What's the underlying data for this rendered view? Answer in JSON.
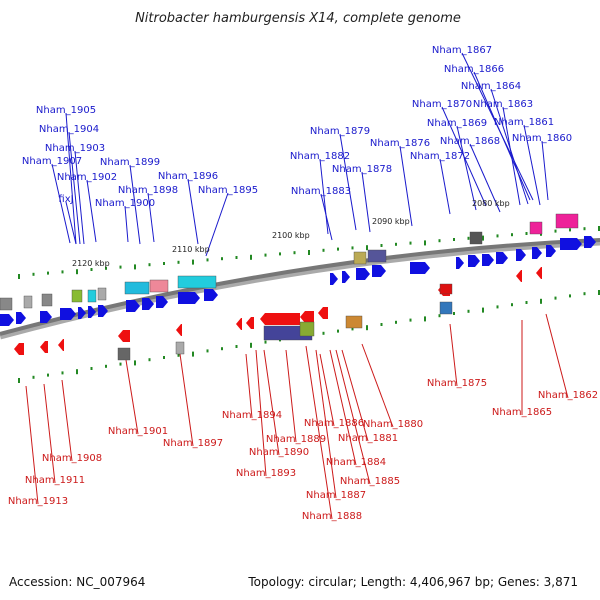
{
  "title": "Nitrobacter hamburgensis X14, complete genome",
  "footer": {
    "accession": "Accession: NC_007964",
    "summary": "Topology: circular; Length: 4,406,967 bp; Genes: 3,871"
  },
  "colors": {
    "forward_label": "#1a1acc",
    "reverse_label": "#cc1a1a",
    "forward_gene": "#1010e0",
    "reverse_gene": "#ee1010",
    "backbone": "#777777",
    "tick": "#228822"
  },
  "ticks": [
    "2120 kbp",
    "2110 kbp",
    "2100 kbp",
    "2090 kbp",
    "2080 kbp"
  ],
  "forward_genes": [
    "Nham_1867",
    "Nham_1866",
    "Nham_1864",
    "Nham_1870",
    "Nham_1863",
    "Nham_1905",
    "Nham_1869",
    "Nham_1861",
    "Nham_1904",
    "Nham_1879",
    "Nham_1868",
    "Nham_1860",
    "Nham_1903",
    "Nham_1876",
    "Nham_1882",
    "Nham_1872",
    "Nham_1907",
    "Nham_1899",
    "Nham_1878",
    "Nham_1896",
    "Nham_1902",
    "Nham_1898",
    "Nham_1895",
    "Nham_1883",
    "fixJ",
    "Nham_1900"
  ],
  "reverse_genes": [
    "Nham_1875",
    "Nham_1862",
    "Nham_1865",
    "Nham_1901",
    "Nham_1880",
    "Nham_1894",
    "Nham_1886",
    "Nham_1897",
    "Nham_1881",
    "Nham_1889",
    "Nham_1890",
    "Nham_1908",
    "Nham_1884",
    "Nham_1893",
    "Nham_1885",
    "Nham_1911",
    "Nham_1887",
    "Nham_1913",
    "Nham_1888"
  ]
}
